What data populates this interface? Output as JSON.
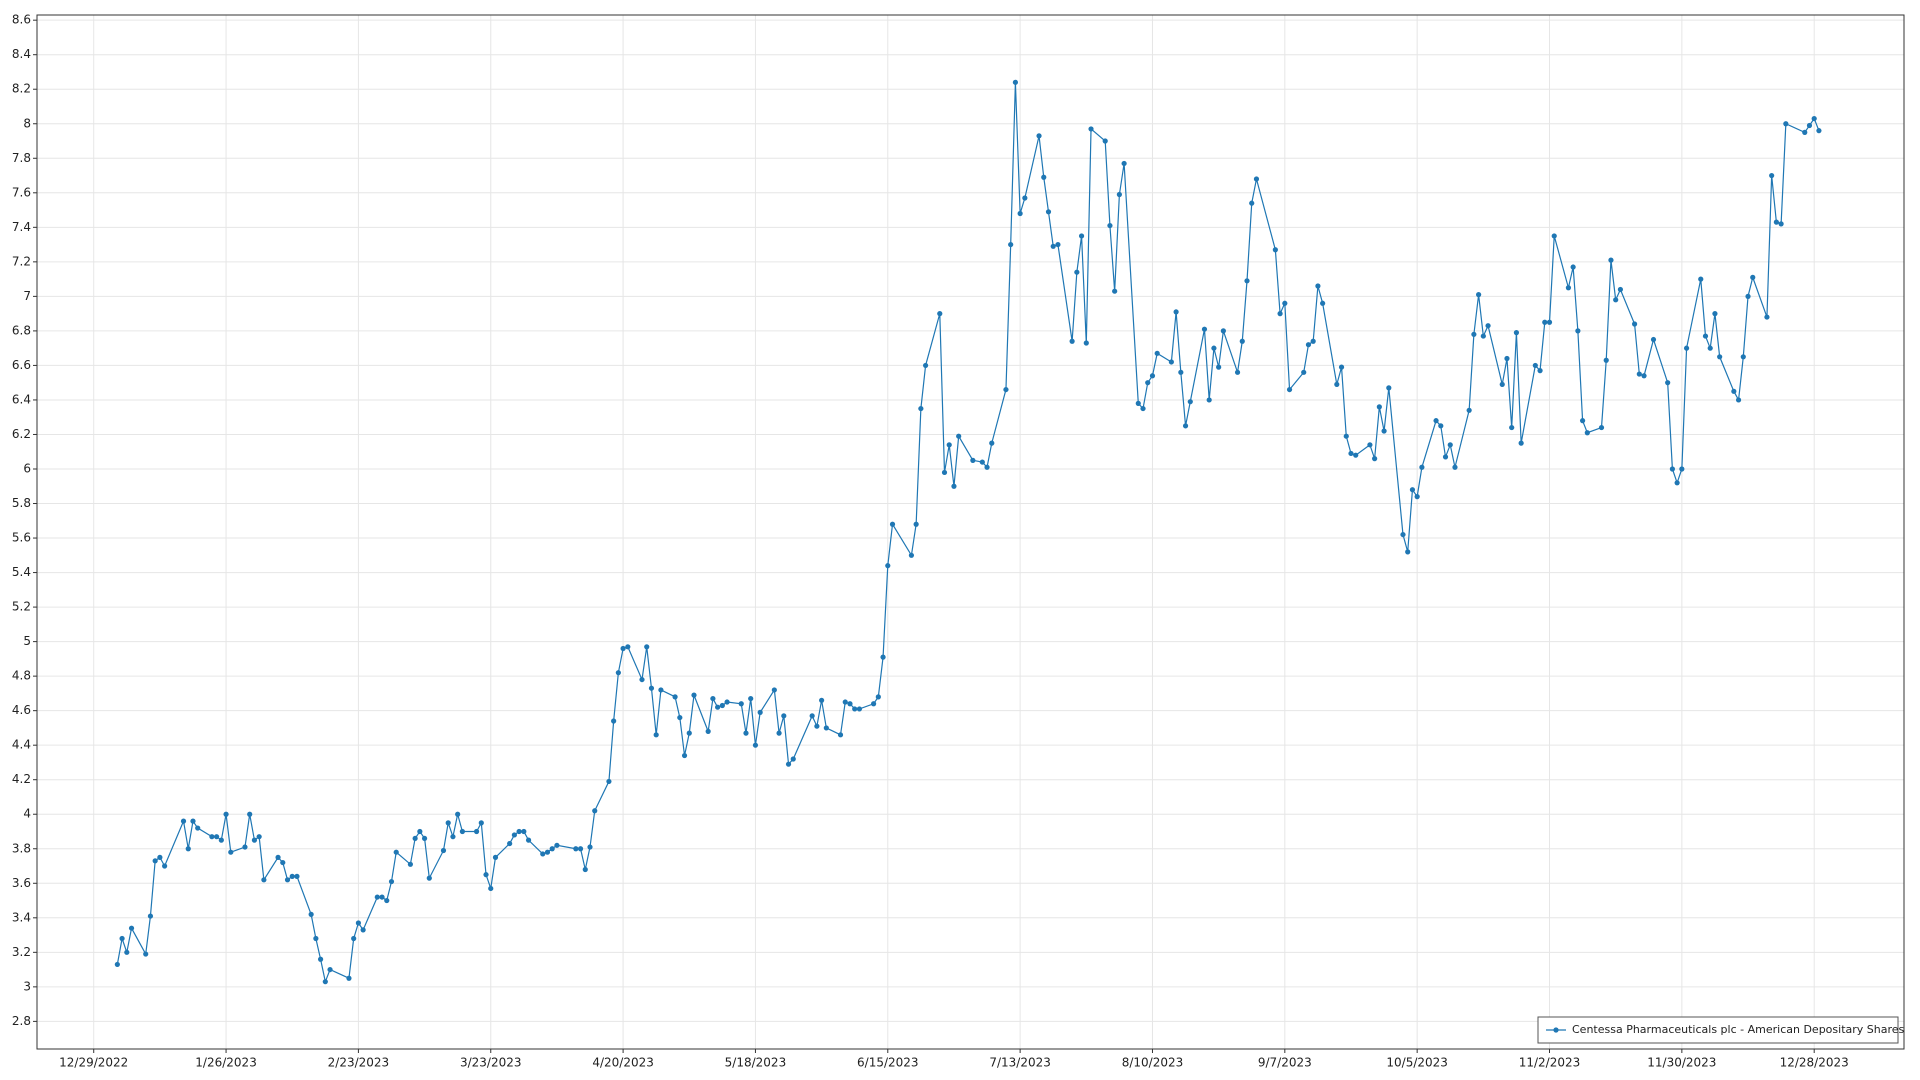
{
  "chart_data": {
    "type": "line",
    "x": [
      "1/3/2023",
      "1/4/2023",
      "1/5/2023",
      "1/6/2023",
      "1/9/2023",
      "1/10/2023",
      "1/11/2023",
      "1/12/2023",
      "1/13/2023",
      "1/17/2023",
      "1/18/2023",
      "1/19/2023",
      "1/20/2023",
      "1/23/2023",
      "1/24/2023",
      "1/25/2023",
      "1/26/2023",
      "1/27/2023",
      "1/30/2023",
      "1/31/2023",
      "2/1/2023",
      "2/2/2023",
      "2/3/2023",
      "2/6/2023",
      "2/7/2023",
      "2/8/2023",
      "2/9/2023",
      "2/10/2023",
      "2/13/2023",
      "2/14/2023",
      "2/15/2023",
      "2/16/2023",
      "2/17/2023",
      "2/21/2023",
      "2/22/2023",
      "2/23/2023",
      "2/24/2023",
      "2/27/2023",
      "2/28/2023",
      "3/1/2023",
      "3/2/2023",
      "3/3/2023",
      "3/6/2023",
      "3/7/2023",
      "3/8/2023",
      "3/9/2023",
      "3/10/2023",
      "3/13/2023",
      "3/14/2023",
      "3/15/2023",
      "3/16/2023",
      "3/17/2023",
      "3/20/2023",
      "3/21/2023",
      "3/22/2023",
      "3/23/2023",
      "3/24/2023",
      "3/27/2023",
      "3/28/2023",
      "3/29/2023",
      "3/30/2023",
      "3/31/2023",
      "4/3/2023",
      "4/4/2023",
      "4/5/2023",
      "4/6/2023",
      "4/10/2023",
      "4/11/2023",
      "4/12/2023",
      "4/13/2023",
      "4/14/2023",
      "4/17/2023",
      "4/18/2023",
      "4/19/2023",
      "4/20/2023",
      "4/21/2023",
      "4/24/2023",
      "4/25/2023",
      "4/26/2023",
      "4/27/2023",
      "4/28/2023",
      "5/1/2023",
      "5/2/2023",
      "5/3/2023",
      "5/4/2023",
      "5/5/2023",
      "5/8/2023",
      "5/9/2023",
      "5/10/2023",
      "5/11/2023",
      "5/12/2023",
      "5/15/2023",
      "5/16/2023",
      "5/17/2023",
      "5/18/2023",
      "5/19/2023",
      "5/22/2023",
      "5/23/2023",
      "5/24/2023",
      "5/25/2023",
      "5/26/2023",
      "5/30/2023",
      "5/31/2023",
      "6/1/2023",
      "6/2/2023",
      "6/5/2023",
      "6/6/2023",
      "6/7/2023",
      "6/8/2023",
      "6/9/2023",
      "6/12/2023",
      "6/13/2023",
      "6/14/2023",
      "6/15/2023",
      "6/16/2023",
      "6/20/2023",
      "6/21/2023",
      "6/22/2023",
      "6/23/2023",
      "6/26/2023",
      "6/27/2023",
      "6/28/2023",
      "6/29/2023",
      "6/30/2023",
      "7/3/2023",
      "7/5/2023",
      "7/6/2023",
      "7/7/2023",
      "7/10/2023",
      "7/11/2023",
      "7/12/2023",
      "7/13/2023",
      "7/14/2023",
      "7/17/2023",
      "7/18/2023",
      "7/19/2023",
      "7/20/2023",
      "7/21/2023",
      "7/24/2023",
      "7/25/2023",
      "7/26/2023",
      "7/27/2023",
      "7/28/2023",
      "7/31/2023",
      "8/1/2023",
      "8/2/2023",
      "8/3/2023",
      "8/4/2023",
      "8/7/2023",
      "8/8/2023",
      "8/9/2023",
      "8/10/2023",
      "8/11/2023",
      "8/14/2023",
      "8/15/2023",
      "8/16/2023",
      "8/17/2023",
      "8/18/2023",
      "8/21/2023",
      "8/22/2023",
      "8/23/2023",
      "8/24/2023",
      "8/25/2023",
      "8/28/2023",
      "8/29/2023",
      "8/30/2023",
      "8/31/2023",
      "9/1/2023",
      "9/5/2023",
      "9/6/2023",
      "9/7/2023",
      "9/8/2023",
      "9/11/2023",
      "9/12/2023",
      "9/13/2023",
      "9/14/2023",
      "9/15/2023",
      "9/18/2023",
      "9/19/2023",
      "9/20/2023",
      "9/21/2023",
      "9/22/2023",
      "9/25/2023",
      "9/26/2023",
      "9/27/2023",
      "9/28/2023",
      "9/29/2023",
      "10/2/2023",
      "10/3/2023",
      "10/4/2023",
      "10/5/2023",
      "10/6/2023",
      "10/9/2023",
      "10/10/2023",
      "10/11/2023",
      "10/12/2023",
      "10/13/2023",
      "10/16/2023",
      "10/17/2023",
      "10/18/2023",
      "10/19/2023",
      "10/20/2023",
      "10/23/2023",
      "10/24/2023",
      "10/25/2023",
      "10/26/2023",
      "10/27/2023",
      "10/30/2023",
      "10/31/2023",
      "11/1/2023",
      "11/2/2023",
      "11/3/2023",
      "11/6/2023",
      "11/7/2023",
      "11/8/2023",
      "11/9/2023",
      "11/10/2023",
      "11/13/2023",
      "11/14/2023",
      "11/15/2023",
      "11/16/2023",
      "11/17/2023",
      "11/20/2023",
      "11/21/2023",
      "11/22/2023",
      "11/24/2023",
      "11/27/2023",
      "11/28/2023",
      "11/29/2023",
      "11/30/2023",
      "12/1/2023",
      "12/4/2023",
      "12/5/2023",
      "12/6/2023",
      "12/7/2023",
      "12/8/2023",
      "12/11/2023",
      "12/12/2023",
      "12/13/2023",
      "12/14/2023",
      "12/15/2023",
      "12/18/2023",
      "12/19/2023",
      "12/20/2023",
      "12/21/2023",
      "12/22/2023",
      "12/26/2023",
      "12/27/2023",
      "12/28/2023",
      "12/29/2023"
    ],
    "series": [
      {
        "name": "Centessa Pharmaceuticals plc - American Depositary Shares",
        "color": "#1f77b4",
        "values": [
          3.13,
          3.28,
          3.2,
          3.34,
          3.19,
          3.41,
          3.73,
          3.75,
          3.7,
          3.96,
          3.8,
          3.96,
          3.92,
          3.87,
          3.87,
          3.85,
          4.0,
          3.78,
          3.81,
          4.0,
          3.85,
          3.87,
          3.62,
          3.75,
          3.72,
          3.62,
          3.64,
          3.64,
          3.42,
          3.28,
          3.16,
          3.03,
          3.1,
          3.05,
          3.28,
          3.37,
          3.33,
          3.52,
          3.52,
          3.5,
          3.61,
          3.78,
          3.71,
          3.86,
          3.9,
          3.86,
          3.63,
          3.79,
          3.95,
          3.87,
          4.0,
          3.9,
          3.9,
          3.95,
          3.65,
          3.57,
          3.75,
          3.83,
          3.88,
          3.9,
          3.9,
          3.85,
          3.77,
          3.78,
          3.8,
          3.82,
          3.8,
          3.8,
          3.68,
          3.81,
          4.02,
          4.19,
          4.54,
          4.82,
          4.96,
          4.97,
          4.78,
          4.97,
          4.73,
          4.46,
          4.72,
          4.68,
          4.56,
          4.34,
          4.47,
          4.69,
          4.48,
          4.67,
          4.62,
          4.63,
          4.65,
          4.64,
          4.47,
          4.67,
          4.4,
          4.59,
          4.72,
          4.47,
          4.57,
          4.29,
          4.32,
          4.57,
          4.51,
          4.66,
          4.5,
          4.46,
          4.65,
          4.64,
          4.61,
          4.61,
          4.64,
          4.68,
          4.91,
          5.44,
          5.68,
          5.5,
          5.68,
          6.35,
          6.6,
          6.9,
          5.98,
          6.14,
          5.9,
          6.19,
          6.05,
          6.04,
          6.01,
          6.15,
          6.46,
          7.3,
          8.24,
          7.48,
          7.57,
          7.93,
          7.69,
          7.49,
          7.29,
          7.3,
          6.74,
          7.14,
          7.35,
          6.73,
          7.97,
          7.9,
          7.41,
          7.03,
          7.59,
          7.77,
          6.38,
          6.35,
          6.5,
          6.54,
          6.67,
          6.62,
          6.91,
          6.56,
          6.25,
          6.39,
          6.81,
          6.4,
          6.7,
          6.59,
          6.8,
          6.56,
          6.74,
          7.09,
          7.54,
          7.68,
          7.27,
          6.9,
          6.96,
          6.46,
          6.56,
          6.72,
          6.74,
          7.06,
          6.96,
          6.49,
          6.59,
          6.19,
          6.09,
          6.08,
          6.14,
          6.06,
          6.36,
          6.22,
          6.47,
          5.62,
          5.52,
          5.88,
          5.84,
          6.01,
          6.28,
          6.25,
          6.07,
          6.14,
          6.01,
          6.34,
          6.78,
          7.01,
          6.77,
          6.83,
          6.49,
          6.64,
          6.24,
          6.79,
          6.15,
          6.6,
          6.57,
          6.85,
          6.85,
          7.35,
          7.05,
          7.17,
          6.8,
          6.28,
          6.21,
          6.24,
          6.63,
          7.21,
          6.98,
          7.04,
          6.84,
          6.55,
          6.54,
          6.75,
          6.5,
          6.0,
          5.92,
          6.0,
          6.7,
          7.1,
          6.77,
          6.7,
          6.9,
          6.65,
          6.45,
          6.4,
          6.65,
          7.0,
          7.11,
          6.88,
          7.7,
          7.43,
          7.42,
          8.0,
          7.95,
          7.99,
          8.03,
          7.96
        ]
      }
    ],
    "xlim": [
      "12/17/2022",
      "1/16/2024"
    ],
    "xticks": [
      "12/29/2022",
      "1/26/2023",
      "2/23/2023",
      "3/23/2023",
      "4/20/2023",
      "5/18/2023",
      "6/15/2023",
      "7/13/2023",
      "8/10/2023",
      "9/7/2023",
      "10/5/2023",
      "11/2/2023",
      "11/30/2023",
      "12/28/2023"
    ],
    "ylim": [
      2.64,
      8.63
    ],
    "yticks": [
      2.8,
      3,
      3.2,
      3.4,
      3.6,
      3.8,
      4,
      4.2,
      4.4,
      4.6,
      4.8,
      5,
      5.2,
      5.4,
      5.6,
      5.8,
      6,
      6.2,
      6.4,
      6.6,
      6.8,
      7,
      7.2,
      7.4,
      7.6,
      7.8,
      8,
      8.2,
      8.4,
      8.6
    ],
    "grid": true,
    "legend": "lower right"
  }
}
